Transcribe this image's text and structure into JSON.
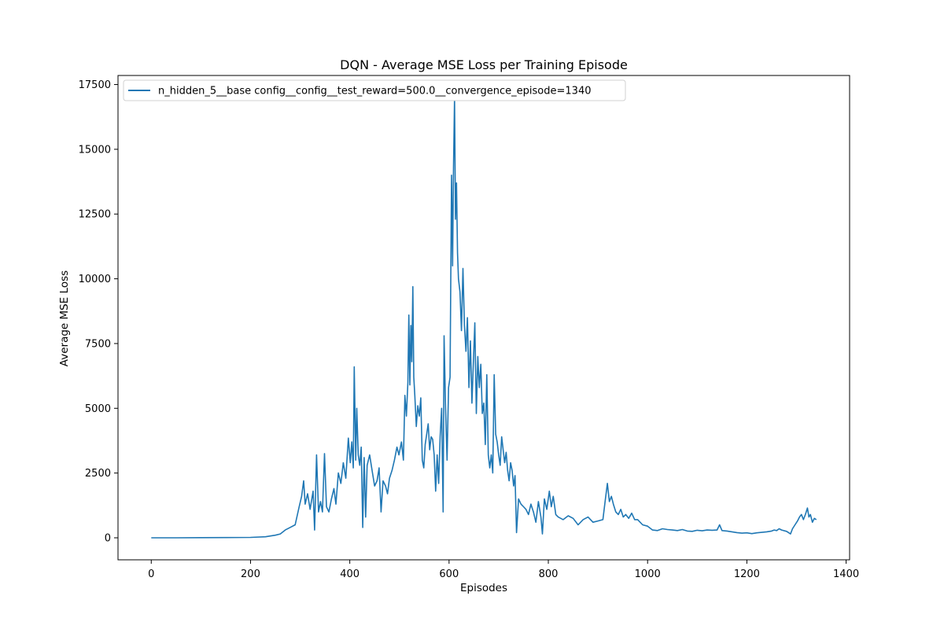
{
  "chart_data": {
    "type": "line",
    "title": "DQN - Average MSE Loss per Training Episode",
    "xlabel": "Episodes",
    "ylabel": "Average MSE Loss",
    "xlim": [
      -67,
      1407
    ],
    "ylim": [
      -850,
      17850
    ],
    "xticks": [
      "0",
      "200",
      "400",
      "600",
      "800",
      "1000",
      "1200",
      "1400"
    ],
    "xtick_values": [
      0,
      200,
      400,
      600,
      800,
      1000,
      1200,
      1400
    ],
    "yticks": [
      "0",
      "2500",
      "5000",
      "7500",
      "10000",
      "12500",
      "15000",
      "17500"
    ],
    "ytick_values": [
      0,
      2500,
      5000,
      7500,
      10000,
      12500,
      15000,
      17500
    ],
    "grid": false,
    "legend_position": "top-left",
    "series": [
      {
        "name": "n_hidden_5__base config__config__test_reward=500.0__convergence_episode=1340",
        "color": "#1f77b4",
        "points": [
          [
            0,
            0
          ],
          [
            50,
            0
          ],
          [
            100,
            5
          ],
          [
            150,
            10
          ],
          [
            200,
            15
          ],
          [
            230,
            40
          ],
          [
            250,
            100
          ],
          [
            260,
            150
          ],
          [
            270,
            300
          ],
          [
            280,
            400
          ],
          [
            290,
            500
          ],
          [
            298,
            1200
          ],
          [
            303,
            1600
          ],
          [
            307,
            2200
          ],
          [
            310,
            1300
          ],
          [
            315,
            1700
          ],
          [
            320,
            1100
          ],
          [
            326,
            1800
          ],
          [
            329,
            300
          ],
          [
            333,
            3200
          ],
          [
            337,
            1000
          ],
          [
            341,
            1400
          ],
          [
            345,
            1000
          ],
          [
            349,
            3250
          ],
          [
            353,
            1200
          ],
          [
            358,
            1000
          ],
          [
            363,
            1500
          ],
          [
            368,
            1900
          ],
          [
            372,
            1300
          ],
          [
            377,
            2500
          ],
          [
            382,
            2100
          ],
          [
            387,
            2900
          ],
          [
            392,
            2300
          ],
          [
            397,
            3850
          ],
          [
            401,
            2900
          ],
          [
            404,
            3700
          ],
          [
            407,
            2700
          ],
          [
            409,
            6600
          ],
          [
            412,
            3000
          ],
          [
            414,
            5000
          ],
          [
            417,
            3200
          ],
          [
            420,
            2800
          ],
          [
            423,
            3500
          ],
          [
            426,
            400
          ],
          [
            429,
            3100
          ],
          [
            432,
            800
          ],
          [
            435,
            2800
          ],
          [
            440,
            3200
          ],
          [
            445,
            2600
          ],
          [
            450,
            2000
          ],
          [
            455,
            2200
          ],
          [
            459,
            2700
          ],
          [
            463,
            1000
          ],
          [
            467,
            2200
          ],
          [
            472,
            2000
          ],
          [
            476,
            1700
          ],
          [
            480,
            2300
          ],
          [
            485,
            2600
          ],
          [
            490,
            3000
          ],
          [
            495,
            3500
          ],
          [
            499,
            3200
          ],
          [
            504,
            3700
          ],
          [
            508,
            3000
          ],
          [
            511,
            5500
          ],
          [
            514,
            4700
          ],
          [
            517,
            6000
          ],
          [
            519,
            8600
          ],
          [
            521,
            5900
          ],
          [
            523,
            8200
          ],
          [
            525,
            6800
          ],
          [
            527,
            9700
          ],
          [
            529,
            6200
          ],
          [
            531,
            5500
          ],
          [
            534,
            4300
          ],
          [
            537,
            5100
          ],
          [
            540,
            4700
          ],
          [
            543,
            5400
          ],
          [
            546,
            3000
          ],
          [
            549,
            2700
          ],
          [
            552,
            3600
          ],
          [
            555,
            4000
          ],
          [
            558,
            4400
          ],
          [
            561,
            3400
          ],
          [
            564,
            3900
          ],
          [
            567,
            3800
          ],
          [
            570,
            3200
          ],
          [
            573,
            1800
          ],
          [
            576,
            3200
          ],
          [
            579,
            2100
          ],
          [
            582,
            3900
          ],
          [
            585,
            5000
          ],
          [
            588,
            1000
          ],
          [
            590,
            7800
          ],
          [
            593,
            5000
          ],
          [
            596,
            3000
          ],
          [
            599,
            5800
          ],
          [
            602,
            6200
          ],
          [
            605,
            14000
          ],
          [
            607,
            10500
          ],
          [
            609,
            14300
          ],
          [
            611,
            17000
          ],
          [
            613,
            12300
          ],
          [
            615,
            13700
          ],
          [
            617,
            11000
          ],
          [
            619,
            10000
          ],
          [
            622,
            9500
          ],
          [
            625,
            8000
          ],
          [
            628,
            10400
          ],
          [
            631,
            8200
          ],
          [
            634,
            7200
          ],
          [
            637,
            8500
          ],
          [
            640,
            5800
          ],
          [
            643,
            7600
          ],
          [
            646,
            5200
          ],
          [
            649,
            6800
          ],
          [
            652,
            8300
          ],
          [
            655,
            4800
          ],
          [
            658,
            7000
          ],
          [
            661,
            5800
          ],
          [
            664,
            6700
          ],
          [
            667,
            4800
          ],
          [
            670,
            5200
          ],
          [
            673,
            3600
          ],
          [
            676,
            6300
          ],
          [
            679,
            3200
          ],
          [
            682,
            2700
          ],
          [
            685,
            3200
          ],
          [
            688,
            2500
          ],
          [
            691,
            6300
          ],
          [
            694,
            4000
          ],
          [
            697,
            3700
          ],
          [
            700,
            3200
          ],
          [
            703,
            2800
          ],
          [
            706,
            3900
          ],
          [
            709,
            3400
          ],
          [
            712,
            2900
          ],
          [
            715,
            3300
          ],
          [
            718,
            2600
          ],
          [
            721,
            2200
          ],
          [
            724,
            2900
          ],
          [
            727,
            2600
          ],
          [
            730,
            2000
          ],
          [
            733,
            2400
          ],
          [
            736,
            200
          ],
          [
            740,
            1500
          ],
          [
            745,
            1300
          ],
          [
            750,
            1200
          ],
          [
            755,
            1100
          ],
          [
            760,
            900
          ],
          [
            765,
            1300
          ],
          [
            770,
            1000
          ],
          [
            775,
            600
          ],
          [
            780,
            1400
          ],
          [
            785,
            800
          ],
          [
            788,
            150
          ],
          [
            792,
            1500
          ],
          [
            797,
            1100
          ],
          [
            802,
            1800
          ],
          [
            806,
            1200
          ],
          [
            810,
            1600
          ],
          [
            815,
            900
          ],
          [
            820,
            800
          ],
          [
            830,
            700
          ],
          [
            840,
            850
          ],
          [
            850,
            750
          ],
          [
            860,
            500
          ],
          [
            870,
            700
          ],
          [
            880,
            800
          ],
          [
            890,
            600
          ],
          [
            900,
            650
          ],
          [
            910,
            700
          ],
          [
            915,
            1500
          ],
          [
            919,
            2100
          ],
          [
            923,
            1400
          ],
          [
            927,
            1600
          ],
          [
            931,
            1300
          ],
          [
            936,
            1000
          ],
          [
            941,
            900
          ],
          [
            946,
            1100
          ],
          [
            951,
            800
          ],
          [
            956,
            900
          ],
          [
            962,
            750
          ],
          [
            968,
            950
          ],
          [
            974,
            700
          ],
          [
            980,
            700
          ],
          [
            990,
            500
          ],
          [
            1000,
            450
          ],
          [
            1010,
            300
          ],
          [
            1020,
            280
          ],
          [
            1030,
            350
          ],
          [
            1040,
            320
          ],
          [
            1050,
            300
          ],
          [
            1060,
            280
          ],
          [
            1070,
            320
          ],
          [
            1080,
            260
          ],
          [
            1090,
            250
          ],
          [
            1100,
            290
          ],
          [
            1110,
            270
          ],
          [
            1120,
            300
          ],
          [
            1130,
            290
          ],
          [
            1140,
            300
          ],
          [
            1145,
            500
          ],
          [
            1150,
            280
          ],
          [
            1160,
            260
          ],
          [
            1170,
            230
          ],
          [
            1180,
            200
          ],
          [
            1190,
            180
          ],
          [
            1200,
            190
          ],
          [
            1210,
            160
          ],
          [
            1220,
            190
          ],
          [
            1230,
            210
          ],
          [
            1240,
            230
          ],
          [
            1250,
            260
          ],
          [
            1255,
            300
          ],
          [
            1260,
            280
          ],
          [
            1265,
            350
          ],
          [
            1270,
            300
          ],
          [
            1280,
            250
          ],
          [
            1288,
            150
          ],
          [
            1292,
            350
          ],
          [
            1297,
            500
          ],
          [
            1302,
            650
          ],
          [
            1306,
            800
          ],
          [
            1310,
            900
          ],
          [
            1314,
            700
          ],
          [
            1318,
            900
          ],
          [
            1322,
            1150
          ],
          [
            1325,
            800
          ],
          [
            1328,
            900
          ],
          [
            1332,
            600
          ],
          [
            1336,
            750
          ],
          [
            1340,
            700
          ]
        ]
      }
    ]
  }
}
